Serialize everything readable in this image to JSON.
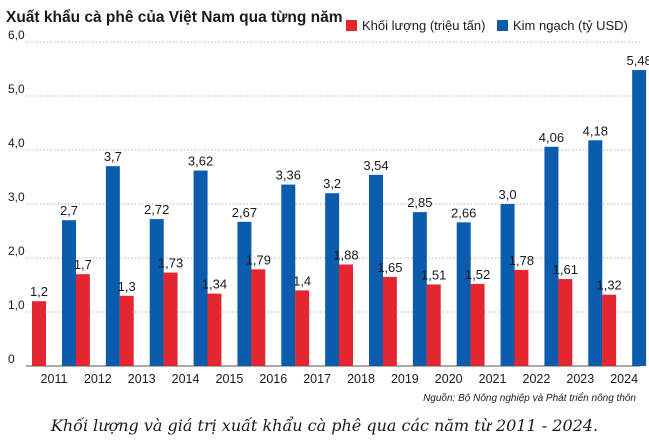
{
  "chart_data": {
    "type": "bar",
    "title": "Xuất khẩu cà phê của Việt Nam qua từng năm",
    "categories": [
      "2011",
      "2012",
      "2013",
      "2014",
      "2015",
      "2016",
      "2017",
      "2018",
      "2019",
      "2020",
      "2021",
      "2022",
      "2023",
      "2024"
    ],
    "series": [
      {
        "name": "Khối lượng (triệu tấn)",
        "color": "#e3262f",
        "values": [
          1.2,
          1.7,
          1.3,
          1.73,
          1.34,
          1.79,
          1.4,
          1.88,
          1.65,
          1.51,
          1.52,
          1.78,
          1.61,
          1.32
        ],
        "labels": [
          "1,2",
          "1,7",
          "1,3",
          "1,73",
          "1,34",
          "1,79",
          "1,4",
          "1,88",
          "1,65",
          "1,51",
          "1,52",
          "1,78",
          "1,61",
          "1,32"
        ]
      },
      {
        "name": "Kim ngạch (tỷ USD)",
        "color": "#0b5cad",
        "values": [
          2.7,
          3.7,
          2.72,
          3.62,
          2.67,
          3.36,
          3.2,
          3.54,
          2.85,
          2.66,
          3.0,
          4.06,
          4.18,
          5.48
        ],
        "labels": [
          "2,7",
          "3,7",
          "2,72",
          "3,62",
          "2,67",
          "3,36",
          "3,2",
          "3,54",
          "2,85",
          "2,66",
          "3,0",
          "4,06",
          "4,18",
          "5,48"
        ]
      }
    ],
    "ylim": [
      0,
      6
    ],
    "yticks": [
      0,
      1,
      2,
      3,
      4,
      5,
      6
    ],
    "ytick_labels": [
      "0",
      "1,0",
      "2,0",
      "3,0",
      "4,0",
      "5,0",
      "6,0"
    ],
    "grid": true,
    "legend_position": "top-right",
    "source": "Nguồn: Bộ Nông nghiệp và Phát triển nông thôn"
  },
  "caption": "Khối lượng và giá trị xuất khẩu cà phê qua các năm từ 2011 - 2024."
}
